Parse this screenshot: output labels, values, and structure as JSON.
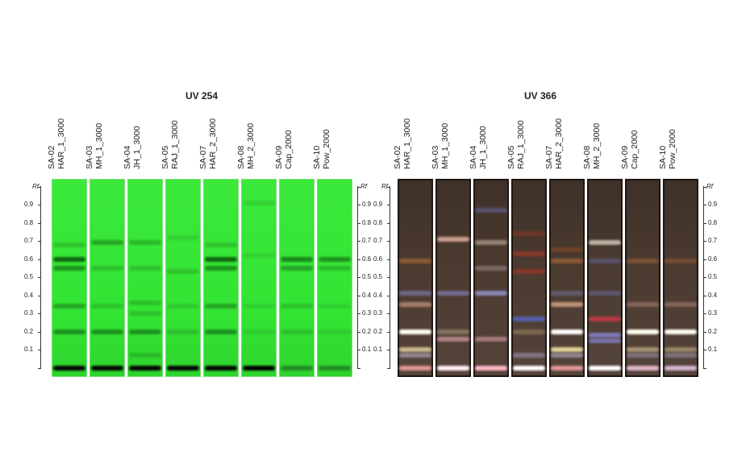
{
  "panels": [
    {
      "title": "UV 254",
      "kind": "g",
      "lanes": [
        {
          "id": "SA-02",
          "name": "HAR_1_3000",
          "bands": [
            [
              0.6,
              "#0c5a0c",
              0.9
            ],
            [
              0.55,
              "#137013",
              0.7
            ],
            [
              0.68,
              "#1c8f1c",
              0.4
            ],
            [
              0.34,
              "#1b7a1b",
              0.6
            ],
            [
              0.2,
              "#177017",
              0.7
            ],
            [
              0.0,
              "#050505",
              1
            ]
          ]
        },
        {
          "id": "SA-03",
          "name": "MH_1_3000",
          "bands": [
            [
              0.69,
              "#187a18",
              0.6
            ],
            [
              0.55,
              "#1f8c1f",
              0.4
            ],
            [
              0.34,
              "#238f23",
              0.4
            ],
            [
              0.2,
              "#177017",
              0.7
            ],
            [
              0.0,
              "#050505",
              1
            ]
          ]
        },
        {
          "id": "SA-04",
          "name": "JH_1_3000",
          "bands": [
            [
              0.69,
              "#1f8c1f",
              0.5
            ],
            [
              0.55,
              "#1f8c1f",
              0.4
            ],
            [
              0.36,
              "#1f8c1f",
              0.4
            ],
            [
              0.3,
              "#238f23",
              0.4
            ],
            [
              0.2,
              "#177017",
              0.7
            ],
            [
              0.07,
              "#1f8c1f",
              0.4
            ],
            [
              0.0,
              "#050505",
              1
            ]
          ]
        },
        {
          "id": "SA-05",
          "name": "RAJ_1_3000",
          "bands": [
            [
              0.72,
              "#28a028",
              0.3
            ],
            [
              0.53,
              "#238f23",
              0.4
            ],
            [
              0.34,
              "#238f23",
              0.3
            ],
            [
              0.2,
              "#238f23",
              0.4
            ],
            [
              0.0,
              "#050505",
              1
            ]
          ]
        },
        {
          "id": "SA-07",
          "name": "HAR_2_3000",
          "bands": [
            [
              0.6,
              "#0c5a0c",
              0.9
            ],
            [
              0.55,
              "#137013",
              0.7
            ],
            [
              0.68,
              "#1c8f1c",
              0.4
            ],
            [
              0.34,
              "#1b7a1b",
              0.6
            ],
            [
              0.2,
              "#177017",
              0.7
            ],
            [
              0.0,
              "#050505",
              1
            ]
          ]
        },
        {
          "id": "SA-08",
          "name": "MH_2_3000",
          "bands": [
            [
              0.91,
              "#28a028",
              0.3
            ],
            [
              0.62,
              "#28a028",
              0.3
            ],
            [
              0.34,
              "#28a028",
              0.3
            ],
            [
              0.2,
              "#28a028",
              0.3
            ],
            [
              0.0,
              "#000000",
              1
            ]
          ]
        },
        {
          "id": "SA-09",
          "name": "Cap_2000",
          "bands": [
            [
              0.6,
              "#137013",
              0.8
            ],
            [
              0.55,
              "#1b7a1b",
              0.6
            ],
            [
              0.34,
              "#238f23",
              0.4
            ],
            [
              0.2,
              "#238f23",
              0.4
            ],
            [
              0.0,
              "#1b5a1b",
              0.6
            ]
          ]
        },
        {
          "id": "SA-10",
          "name": "Pow_2000",
          "bands": [
            [
              0.6,
              "#137013",
              0.7
            ],
            [
              0.55,
              "#1f8c1f",
              0.5
            ],
            [
              0.34,
              "#28a028",
              0.3
            ],
            [
              0.2,
              "#28a028",
              0.3
            ],
            [
              0.0,
              "#1b5a1b",
              0.6
            ]
          ]
        }
      ]
    },
    {
      "title": "UV 366",
      "kind": "b",
      "lanes": [
        {
          "id": "SA-02",
          "name": "HAR_1_3000",
          "bands": [
            [
              0.59,
              "#9a6238",
              0.8
            ],
            [
              0.41,
              "#7a7aa8",
              0.7
            ],
            [
              0.35,
              "#c89a80",
              0.7
            ],
            [
              0.2,
              "#fffff0",
              1
            ],
            [
              0.1,
              "#e8d8a0",
              0.8
            ],
            [
              0.07,
              "#b8b0c8",
              0.6
            ],
            [
              0.0,
              "#f0a0a0",
              0.9
            ]
          ]
        },
        {
          "id": "SA-03",
          "name": "MH_1_3000",
          "bands": [
            [
              0.71,
              "#d8a898",
              0.9
            ],
            [
              0.41,
              "#8080b8",
              0.7
            ],
            [
              0.2,
              "#b8a888",
              0.5
            ],
            [
              0.16,
              "#d8a0a8",
              0.7
            ],
            [
              0.0,
              "#fff0f8",
              1
            ]
          ]
        },
        {
          "id": "SA-04",
          "name": "JH_1_3000",
          "bands": [
            [
              0.87,
              "#7070b0",
              0.5
            ],
            [
              0.69,
              "#c8b8a8",
              0.6
            ],
            [
              0.55,
              "#a89898",
              0.5
            ],
            [
              0.41,
              "#9898d8",
              0.8
            ],
            [
              0.16,
              "#d8a0a8",
              0.6
            ],
            [
              0.0,
              "#ffb8c8",
              1
            ]
          ]
        },
        {
          "id": "SA-05",
          "name": "RAJ_1_3000",
          "bands": [
            [
              0.74,
              "#883828",
              0.6
            ],
            [
              0.63,
              "#a03828",
              0.7
            ],
            [
              0.53,
              "#a03828",
              0.7
            ],
            [
              0.27,
              "#5868c8",
              0.8
            ],
            [
              0.2,
              "#a89070",
              0.5
            ],
            [
              0.07,
              "#a098b8",
              0.6
            ],
            [
              0.0,
              "#ffffff",
              1
            ]
          ]
        },
        {
          "id": "SA-07",
          "name": "HAR_2_3000",
          "bands": [
            [
              0.65,
              "#8a4828",
              0.6
            ],
            [
              0.59,
              "#9a6238",
              0.8
            ],
            [
              0.41,
              "#7a7aa8",
              0.5
            ],
            [
              0.35,
              "#d8a888",
              0.8
            ],
            [
              0.2,
              "#ffffff",
              1
            ],
            [
              0.1,
              "#f0e0a0",
              0.9
            ],
            [
              0.07,
              "#b8b0c8",
              0.6
            ],
            [
              0.0,
              "#f0a0a0",
              0.9
            ]
          ]
        },
        {
          "id": "SA-08",
          "name": "MH_2_3000",
          "bands": [
            [
              0.69,
              "#d8d0c0",
              0.8
            ],
            [
              0.59,
              "#6868a8",
              0.5
            ],
            [
              0.41,
              "#7070b0",
              0.5
            ],
            [
              0.27,
              "#d03848",
              0.8
            ],
            [
              0.18,
              "#8888d8",
              0.8
            ],
            [
              0.15,
              "#8888d8",
              0.7
            ],
            [
              0.0,
              "#ffffff",
              1
            ]
          ]
        },
        {
          "id": "SA-09",
          "name": "Cap_2000",
          "bands": [
            [
              0.59,
              "#9a6238",
              0.6
            ],
            [
              0.35,
              "#b89080",
              0.5
            ],
            [
              0.2,
              "#fffff0",
              1
            ],
            [
              0.1,
              "#d8c898",
              0.6
            ],
            [
              0.07,
              "#a8a0b8",
              0.5
            ],
            [
              0.0,
              "#f0c0d8",
              0.9
            ]
          ]
        },
        {
          "id": "SA-10",
          "name": "Pow_2000",
          "bands": [
            [
              0.59,
              "#9a6238",
              0.5
            ],
            [
              0.35,
              "#b89080",
              0.5
            ],
            [
              0.2,
              "#fffff0",
              1
            ],
            [
              0.1,
              "#d8c898",
              0.5
            ],
            [
              0.07,
              "#a8a0b8",
              0.5
            ],
            [
              0.0,
              "#e0c0e0",
              0.9
            ]
          ]
        }
      ]
    }
  ],
  "axis": {
    "label": "Rf",
    "ticks": [
      "0.9",
      "0.8",
      "0.7",
      "0.6",
      "0.5",
      "0.4",
      "0.3",
      "0.2",
      "0.1"
    ]
  }
}
